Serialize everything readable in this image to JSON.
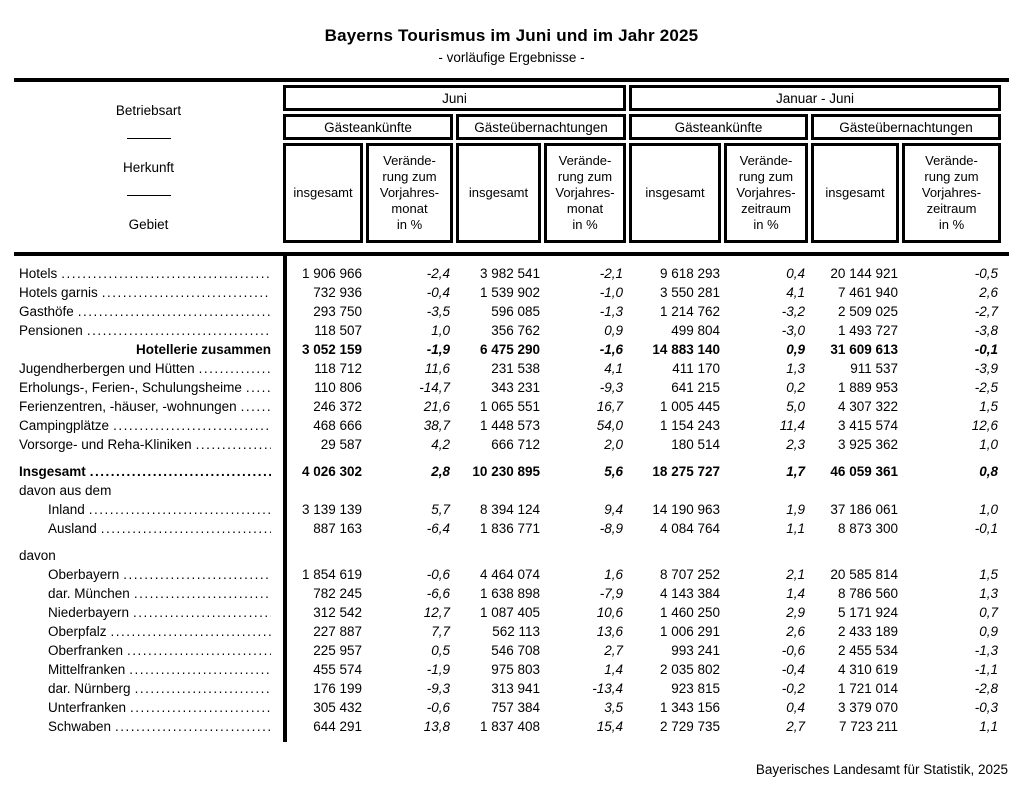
{
  "page": {
    "title": "Bayerns Tourismus im Juni und im Jahr 2025",
    "subtitle": "- vorläufige Ergebnisse -",
    "footer": "Bayerisches Landesamt für Statistik, 2025"
  },
  "table": {
    "stub": [
      "Betriebsart",
      "Herkunft",
      "Gebiet"
    ],
    "group_labels": [
      "Juni",
      "Januar - Juni"
    ],
    "subgroup_labels": [
      "Gästeankünfte",
      "Gästeübernachtungen",
      "Gästeankünfte",
      "Gästeübernachtungen"
    ],
    "measure_labels": [
      "insgesamt",
      "Verände-\nrung zum\nVorjahres-\nmonat\nin %",
      "insgesamt",
      "Verände-\nrung zum\nVorjahres-\nmonat\nin %",
      "insgesamt",
      "Verände-\nrung zum\nVorjahres-\nzeitraum\nin %",
      "insgesamt",
      "Verände-\nrung zum\nVorjahres-\nzeitraum\nin %"
    ],
    "rows": [
      {
        "label": "Hotels",
        "style": "data",
        "indent": false,
        "gap_before": false,
        "values": [
          "1 906 966",
          "-2,4",
          "3 982 541",
          "-2,1",
          "9 618 293",
          "0,4",
          "20 144 921",
          "-0,5"
        ]
      },
      {
        "label": "Hotels garnis",
        "style": "data",
        "indent": false,
        "gap_before": false,
        "values": [
          "732 936",
          "-0,4",
          "1 539 902",
          "-1,0",
          "3 550 281",
          "4,1",
          "7 461 940",
          "2,6"
        ]
      },
      {
        "label": "Gasthöfe",
        "style": "data",
        "indent": false,
        "gap_before": false,
        "values": [
          "293 750",
          "-3,5",
          "596 085",
          "-1,3",
          "1 214 762",
          "-3,2",
          "2 509 025",
          "-2,7"
        ]
      },
      {
        "label": "Pensionen",
        "style": "data",
        "indent": false,
        "gap_before": false,
        "values": [
          "118 507",
          "1,0",
          "356 762",
          "0,9",
          "499 804",
          "-3,0",
          "1 493 727",
          "-3,8"
        ]
      },
      {
        "label": "Hotellerie zusammen",
        "style": "summary",
        "indent": false,
        "gap_before": false,
        "values": [
          "3 052 159",
          "-1,9",
          "6 475 290",
          "-1,6",
          "14 883 140",
          "0,9",
          "31 609 613",
          "-0,1"
        ]
      },
      {
        "label": "Jugendherbergen und Hütten",
        "style": "data",
        "indent": false,
        "gap_before": false,
        "values": [
          "118 712",
          "11,6",
          "231 538",
          "4,1",
          "411 170",
          "1,3",
          "911 537",
          "-3,9"
        ]
      },
      {
        "label": "Erholungs-, Ferien-, Schulungsheime",
        "style": "data",
        "indent": false,
        "gap_before": false,
        "values": [
          "110 806",
          "-14,7",
          "343 231",
          "-9,3",
          "641 215",
          "0,2",
          "1 889 953",
          "-2,5"
        ]
      },
      {
        "label": "Ferienzentren, -häuser, -wohnungen",
        "style": "data",
        "indent": false,
        "gap_before": false,
        "values": [
          "246 372",
          "21,6",
          "1 065 551",
          "16,7",
          "1 005 445",
          "5,0",
          "4 307 322",
          "1,5"
        ]
      },
      {
        "label": "Campingplätze",
        "style": "data",
        "indent": false,
        "gap_before": false,
        "values": [
          "468 666",
          "38,7",
          "1 448 573",
          "54,0",
          "1 154 243",
          "11,4",
          "3 415 574",
          "12,6"
        ]
      },
      {
        "label": "Vorsorge- und Reha-Kliniken",
        "style": "data",
        "indent": false,
        "gap_before": false,
        "values": [
          "29 587",
          "4,2",
          "666 712",
          "2,0",
          "180 514",
          "2,3",
          "3 925 362",
          "1,0"
        ]
      },
      {
        "label": "Insgesamt",
        "style": "total",
        "indent": false,
        "gap_before": true,
        "values": [
          "4 026 302",
          "2,8",
          "10 230 895",
          "5,6",
          "18 275 727",
          "1,7",
          "46 059 361",
          "0,8"
        ]
      },
      {
        "label": "davon aus dem",
        "style": "section",
        "indent": false,
        "gap_before": false,
        "values": []
      },
      {
        "label": "Inland",
        "style": "data",
        "indent": true,
        "gap_before": false,
        "values": [
          "3 139 139",
          "5,7",
          "8 394 124",
          "9,4",
          "14 190 963",
          "1,9",
          "37 186 061",
          "1,0"
        ]
      },
      {
        "label": "Ausland",
        "style": "data",
        "indent": true,
        "gap_before": false,
        "values": [
          "887 163",
          "-6,4",
          "1 836 771",
          "-8,9",
          "4 084 764",
          "1,1",
          "8 873 300",
          "-0,1"
        ]
      },
      {
        "label": "davon",
        "style": "section",
        "indent": false,
        "gap_before": true,
        "values": []
      },
      {
        "label": "Oberbayern",
        "style": "data",
        "indent": true,
        "gap_before": false,
        "values": [
          "1 854 619",
          "-0,6",
          "4 464 074",
          "1,6",
          "8 707 252",
          "2,1",
          "20 585 814",
          "1,5"
        ]
      },
      {
        "label": "dar. München",
        "style": "data",
        "indent": true,
        "gap_before": false,
        "values": [
          "782 245",
          "-6,6",
          "1 638 898",
          "-7,9",
          "4 143 384",
          "1,4",
          "8 786 560",
          "1,3"
        ]
      },
      {
        "label": "Niederbayern",
        "style": "data",
        "indent": true,
        "gap_before": false,
        "values": [
          "312 542",
          "12,7",
          "1 087 405",
          "10,6",
          "1 460 250",
          "2,9",
          "5 171 924",
          "0,7"
        ]
      },
      {
        "label": "Oberpfalz",
        "style": "data",
        "indent": true,
        "gap_before": false,
        "values": [
          "227 887",
          "7,7",
          "562 113",
          "13,6",
          "1 006 291",
          "2,6",
          "2 433 189",
          "0,9"
        ]
      },
      {
        "label": "Oberfranken",
        "style": "data",
        "indent": true,
        "gap_before": false,
        "values": [
          "225 957",
          "0,5",
          "546 708",
          "2,7",
          "993 241",
          "-0,6",
          "2 455 534",
          "-1,3"
        ]
      },
      {
        "label": "Mittelfranken",
        "style": "data",
        "indent": true,
        "gap_before": false,
        "values": [
          "455 574",
          "-1,9",
          "975 803",
          "1,4",
          "2 035 802",
          "-0,4",
          "4 310 619",
          "-1,1"
        ]
      },
      {
        "label": "dar. Nürnberg",
        "style": "data",
        "indent": true,
        "gap_before": false,
        "values": [
          "176 199",
          "-9,3",
          "313 941",
          "-13,4",
          "923 815",
          "-0,2",
          "1 721 014",
          "-2,8"
        ]
      },
      {
        "label": "Unterfranken",
        "style": "data",
        "indent": true,
        "gap_before": false,
        "values": [
          "305 432",
          "-0,6",
          "757 384",
          "3,5",
          "1 343 156",
          "0,4",
          "3 379 070",
          "-0,3"
        ]
      },
      {
        "label": "Schwaben",
        "style": "data",
        "indent": true,
        "gap_before": false,
        "values": [
          "644 291",
          "13,8",
          "1 837 408",
          "15,4",
          "2 729 735",
          "2,7",
          "7 723 211",
          "1,1"
        ]
      }
    ]
  }
}
